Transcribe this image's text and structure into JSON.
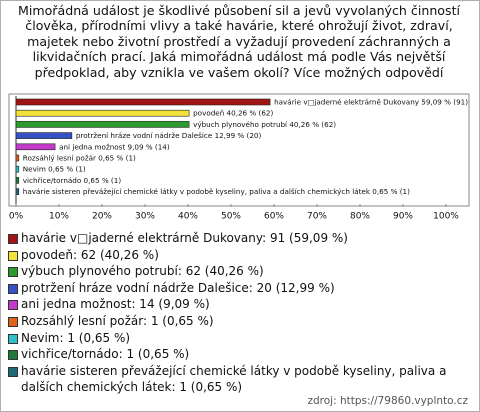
{
  "chart_data": {
    "type": "bar",
    "orientation": "horizontal",
    "title": "Mimořádná událost je škodlivé působení sil a jevů vyvolaných činností člověka, přírodními vlivy a také havárie, které ohrožují život, zdraví, majetek nebo životní prostředí a vyžadují provedení záchranných a likvidačních prací. Jaká mimořádná událost má podle Vás největší předpoklad, aby vznikla ve vašem okolí? Více možných odpovědí",
    "categories": [
      "havárie v□jaderné elektrárně Dukovany",
      "povodeň",
      "výbuch plynového potrubí",
      "protržení hráze vodní nádrže Dalešice",
      "ani jedna možnost",
      "Rozsáhlý lesní požár",
      "Nevim",
      "vichřice/tornádo",
      "havárie sisteren převážející chemické látky v podobě kyseliny, paliva a dalších chemických látek"
    ],
    "values": [
      59.09,
      40.26,
      40.26,
      12.99,
      9.09,
      0.65,
      0.65,
      0.65,
      0.65
    ],
    "value_labels": [
      "havárie v□jaderné elektrárně Dukovany 59,09 % (91)",
      "povodeň 40,26 % (62)",
      "výbuch plynového potrubí 40,26 % (62)",
      "protržení hráze vodní nádrže Dalešice 12,99 % (20)",
      "ani jedna možnost 9,09 % (14)",
      "Rozsáhlý lesní požár 0,65 % (1)",
      "Nevim 0,65 % (1)",
      "vichřice/tornádo 0,65 % (1)",
      "havárie sisteren převážející chemické látky v podobě kyseliny, paliva a dalších chemických látek 0,65 % (1)"
    ],
    "legend_labels": [
      "havárie v□jaderné elektrárně Dukovany: 91 (59,09 %)",
      "povodeň: 62 (40,26 %)",
      "výbuch plynového potrubí: 62 (40,26 %)",
      "protržení hráze vodní nádrže Dalešice: 20 (12,99 %)",
      "ani jedna možnost: 14 (9,09 %)",
      "Rozsáhlý lesní požár: 1 (0,65 %)",
      "Nevim: 1 (0,65 %)",
      "vichřice/tornádo: 1 (0,65 %)",
      "havárie sisteren převážející chemické látky v podobě kyseliny, paliva a dalších chemických látek: 1 (0,65 %)"
    ],
    "colors": [
      "#a01414",
      "#f2e23a",
      "#2c9a2c",
      "#3552c4",
      "#c23ac8",
      "#e2601a",
      "#2cc0c8",
      "#1f7a3a",
      "#1f6c78"
    ],
    "xlim": [
      0,
      100
    ],
    "xticks": [
      {
        "value": 0,
        "label": "0%"
      },
      {
        "value": 10,
        "label": "10%"
      },
      {
        "value": 20,
        "label": "20%"
      },
      {
        "value": 30,
        "label": "30%"
      },
      {
        "value": 40,
        "label": "40%"
      },
      {
        "value": 50,
        "label": "50%"
      },
      {
        "value": 60,
        "label": "60%"
      },
      {
        "value": 70,
        "label": "70%"
      },
      {
        "value": 80,
        "label": "80%"
      },
      {
        "value": 90,
        "label": "90%"
      },
      {
        "value": 100,
        "label": "100%"
      }
    ],
    "grid": false,
    "source": "zdroj: https://79860.vyplnto.cz"
  }
}
